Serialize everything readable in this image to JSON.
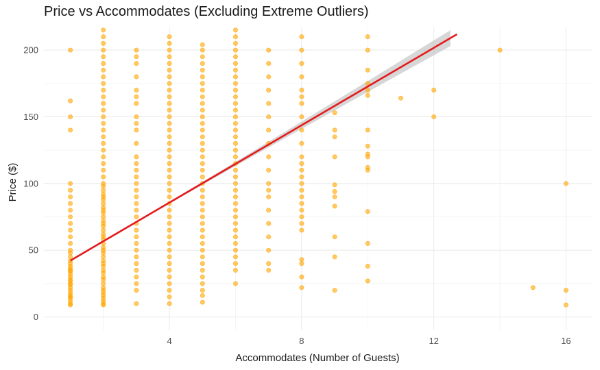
{
  "chart_data": {
    "type": "scatter",
    "title": "Price vs Accommodates (Excluding Extreme Outliers)",
    "xlabel": "Accommodates (Number of Guests)",
    "ylabel": "Price ($)",
    "xlim": [
      0.2,
      16.8
    ],
    "ylim": [
      -10,
      217
    ],
    "x_ticks": [
      4,
      8,
      12,
      16
    ],
    "y_ticks": [
      0,
      50,
      100,
      150,
      200
    ],
    "grid": true,
    "legend": "none",
    "point_color": "#FFA500",
    "trend_color": "#E41A1C",
    "band_color": "#BEBEBE",
    "trend_line": {
      "method": "lm",
      "intercept": 27.7,
      "slope": 14.5,
      "x_range": [
        1,
        12.7
      ],
      "se_band": true
    },
    "series": [
      {
        "points": [
          [
            1,
            9
          ],
          [
            1,
            10
          ],
          [
            1,
            12
          ],
          [
            1,
            14
          ],
          [
            1,
            15
          ],
          [
            1,
            16
          ],
          [
            1,
            18
          ],
          [
            1,
            20
          ],
          [
            1,
            22
          ],
          [
            1,
            24
          ],
          [
            1,
            25
          ],
          [
            1,
            27
          ],
          [
            1,
            28
          ],
          [
            1,
            30
          ],
          [
            1,
            32
          ],
          [
            1,
            34
          ],
          [
            1,
            35
          ],
          [
            1,
            36
          ],
          [
            1,
            38
          ],
          [
            1,
            40
          ],
          [
            1,
            42
          ],
          [
            1,
            45
          ],
          [
            1,
            48
          ],
          [
            1,
            50
          ],
          [
            1,
            55
          ],
          [
            1,
            60
          ],
          [
            1,
            65
          ],
          [
            1,
            70
          ],
          [
            1,
            75
          ],
          [
            1,
            80
          ],
          [
            1,
            85
          ],
          [
            1,
            90
          ],
          [
            1,
            95
          ],
          [
            1,
            100
          ],
          [
            1,
            140
          ],
          [
            1,
            150
          ],
          [
            1,
            162
          ],
          [
            1,
            200
          ],
          [
            2,
            9
          ],
          [
            2,
            10
          ],
          [
            2,
            12
          ],
          [
            2,
            14
          ],
          [
            2,
            16
          ],
          [
            2,
            18
          ],
          [
            2,
            20
          ],
          [
            2,
            22
          ],
          [
            2,
            25
          ],
          [
            2,
            28
          ],
          [
            2,
            30
          ],
          [
            2,
            33
          ],
          [
            2,
            35
          ],
          [
            2,
            38
          ],
          [
            2,
            40
          ],
          [
            2,
            42
          ],
          [
            2,
            45
          ],
          [
            2,
            48
          ],
          [
            2,
            50
          ],
          [
            2,
            52
          ],
          [
            2,
            55
          ],
          [
            2,
            58
          ],
          [
            2,
            60
          ],
          [
            2,
            62
          ],
          [
            2,
            65
          ],
          [
            2,
            68
          ],
          [
            2,
            70
          ],
          [
            2,
            72
          ],
          [
            2,
            75
          ],
          [
            2,
            78
          ],
          [
            2,
            80
          ],
          [
            2,
            82
          ],
          [
            2,
            85
          ],
          [
            2,
            88
          ],
          [
            2,
            90
          ],
          [
            2,
            92
          ],
          [
            2,
            95
          ],
          [
            2,
            98
          ],
          [
            2,
            100
          ],
          [
            2,
            105
          ],
          [
            2,
            110
          ],
          [
            2,
            115
          ],
          [
            2,
            120
          ],
          [
            2,
            125
          ],
          [
            2,
            130
          ],
          [
            2,
            135
          ],
          [
            2,
            140
          ],
          [
            2,
            145
          ],
          [
            2,
            150
          ],
          [
            2,
            155
          ],
          [
            2,
            160
          ],
          [
            2,
            165
          ],
          [
            2,
            170
          ],
          [
            2,
            175
          ],
          [
            2,
            180
          ],
          [
            2,
            185
          ],
          [
            2,
            190
          ],
          [
            2,
            195
          ],
          [
            2,
            200
          ],
          [
            2,
            205
          ],
          [
            2,
            210
          ],
          [
            2,
            215
          ],
          [
            3,
            10
          ],
          [
            3,
            20
          ],
          [
            3,
            25
          ],
          [
            3,
            30
          ],
          [
            3,
            35
          ],
          [
            3,
            40
          ],
          [
            3,
            45
          ],
          [
            3,
            50
          ],
          [
            3,
            55
          ],
          [
            3,
            60
          ],
          [
            3,
            65
          ],
          [
            3,
            70
          ],
          [
            3,
            75
          ],
          [
            3,
            80
          ],
          [
            3,
            85
          ],
          [
            3,
            90
          ],
          [
            3,
            95
          ],
          [
            3,
            100
          ],
          [
            3,
            105
          ],
          [
            3,
            110
          ],
          [
            3,
            115
          ],
          [
            3,
            120
          ],
          [
            3,
            130
          ],
          [
            3,
            140
          ],
          [
            3,
            145
          ],
          [
            3,
            150
          ],
          [
            3,
            160
          ],
          [
            3,
            165
          ],
          [
            3,
            170
          ],
          [
            3,
            180
          ],
          [
            3,
            190
          ],
          [
            3,
            195
          ],
          [
            3,
            200
          ],
          [
            4,
            10
          ],
          [
            4,
            15
          ],
          [
            4,
            20
          ],
          [
            4,
            25
          ],
          [
            4,
            30
          ],
          [
            4,
            35
          ],
          [
            4,
            40
          ],
          [
            4,
            45
          ],
          [
            4,
            50
          ],
          [
            4,
            55
          ],
          [
            4,
            60
          ],
          [
            4,
            65
          ],
          [
            4,
            70
          ],
          [
            4,
            75
          ],
          [
            4,
            80
          ],
          [
            4,
            85
          ],
          [
            4,
            90
          ],
          [
            4,
            95
          ],
          [
            4,
            100
          ],
          [
            4,
            105
          ],
          [
            4,
            110
          ],
          [
            4,
            115
          ],
          [
            4,
            120
          ],
          [
            4,
            125
          ],
          [
            4,
            130
          ],
          [
            4,
            135
          ],
          [
            4,
            140
          ],
          [
            4,
            145
          ],
          [
            4,
            150
          ],
          [
            4,
            155
          ],
          [
            4,
            160
          ],
          [
            4,
            165
          ],
          [
            4,
            170
          ],
          [
            4,
            175
          ],
          [
            4,
            180
          ],
          [
            4,
            185
          ],
          [
            4,
            190
          ],
          [
            4,
            195
          ],
          [
            4,
            200
          ],
          [
            4,
            205
          ],
          [
            4,
            210
          ],
          [
            5,
            11
          ],
          [
            5,
            16
          ],
          [
            5,
            20
          ],
          [
            5,
            25
          ],
          [
            5,
            30
          ],
          [
            5,
            35
          ],
          [
            5,
            40
          ],
          [
            5,
            45
          ],
          [
            5,
            50
          ],
          [
            5,
            55
          ],
          [
            5,
            60
          ],
          [
            5,
            65
          ],
          [
            5,
            70
          ],
          [
            5,
            75
          ],
          [
            5,
            80
          ],
          [
            5,
            85
          ],
          [
            5,
            90
          ],
          [
            5,
            95
          ],
          [
            5,
            100
          ],
          [
            5,
            105
          ],
          [
            5,
            110
          ],
          [
            5,
            115
          ],
          [
            5,
            120
          ],
          [
            5,
            125
          ],
          [
            5,
            130
          ],
          [
            5,
            135
          ],
          [
            5,
            140
          ],
          [
            5,
            145
          ],
          [
            5,
            150
          ],
          [
            5,
            155
          ],
          [
            5,
            160
          ],
          [
            5,
            165
          ],
          [
            5,
            170
          ],
          [
            5,
            175
          ],
          [
            5,
            180
          ],
          [
            5,
            185
          ],
          [
            5,
            190
          ],
          [
            5,
            195
          ],
          [
            5,
            200
          ],
          [
            5,
            204
          ],
          [
            6,
            25
          ],
          [
            6,
            35
          ],
          [
            6,
            40
          ],
          [
            6,
            45
          ],
          [
            6,
            50
          ],
          [
            6,
            55
          ],
          [
            6,
            60
          ],
          [
            6,
            65
          ],
          [
            6,
            70
          ],
          [
            6,
            75
          ],
          [
            6,
            80
          ],
          [
            6,
            85
          ],
          [
            6,
            90
          ],
          [
            6,
            95
          ],
          [
            6,
            100
          ],
          [
            6,
            105
          ],
          [
            6,
            110
          ],
          [
            6,
            115
          ],
          [
            6,
            120
          ],
          [
            6,
            125
          ],
          [
            6,
            130
          ],
          [
            6,
            135
          ],
          [
            6,
            140
          ],
          [
            6,
            145
          ],
          [
            6,
            150
          ],
          [
            6,
            155
          ],
          [
            6,
            160
          ],
          [
            6,
            165
          ],
          [
            6,
            170
          ],
          [
            6,
            175
          ],
          [
            6,
            180
          ],
          [
            6,
            185
          ],
          [
            6,
            190
          ],
          [
            6,
            195
          ],
          [
            6,
            200
          ],
          [
            6,
            205
          ],
          [
            6,
            210
          ],
          [
            6,
            215
          ],
          [
            7,
            35
          ],
          [
            7,
            40
          ],
          [
            7,
            50
          ],
          [
            7,
            60
          ],
          [
            7,
            70
          ],
          [
            7,
            80
          ],
          [
            7,
            90
          ],
          [
            7,
            95
          ],
          [
            7,
            100
          ],
          [
            7,
            110
          ],
          [
            7,
            120
          ],
          [
            7,
            130
          ],
          [
            7,
            140
          ],
          [
            7,
            150
          ],
          [
            7,
            160
          ],
          [
            7,
            170
          ],
          [
            7,
            180
          ],
          [
            7,
            190
          ],
          [
            7,
            200
          ],
          [
            8,
            22
          ],
          [
            8,
            30
          ],
          [
            8,
            40
          ],
          [
            8,
            43
          ],
          [
            8,
            65
          ],
          [
            8,
            70
          ],
          [
            8,
            75
          ],
          [
            8,
            80
          ],
          [
            8,
            85
          ],
          [
            8,
            90
          ],
          [
            8,
            95
          ],
          [
            8,
            100
          ],
          [
            8,
            105
          ],
          [
            8,
            110
          ],
          [
            8,
            115
          ],
          [
            8,
            120
          ],
          [
            8,
            130
          ],
          [
            8,
            140
          ],
          [
            8,
            150
          ],
          [
            8,
            160
          ],
          [
            8,
            165
          ],
          [
            8,
            170
          ],
          [
            8,
            180
          ],
          [
            8,
            190
          ],
          [
            8,
            200
          ],
          [
            8,
            210
          ],
          [
            9,
            20
          ],
          [
            9,
            45
          ],
          [
            9,
            60
          ],
          [
            9,
            83
          ],
          [
            9,
            90
          ],
          [
            9,
            94
          ],
          [
            9,
            99
          ],
          [
            9,
            120
          ],
          [
            9,
            135
          ],
          [
            9,
            140
          ],
          [
            9,
            153
          ],
          [
            10,
            27
          ],
          [
            10,
            38
          ],
          [
            10,
            55
          ],
          [
            10,
            79
          ],
          [
            10,
            110
          ],
          [
            10,
            112
          ],
          [
            10,
            120
          ],
          [
            10,
            122
          ],
          [
            10,
            128
          ],
          [
            10,
            140
          ],
          [
            10,
            166
          ],
          [
            10,
            170
          ],
          [
            10,
            175
          ],
          [
            10,
            185
          ],
          [
            10,
            200
          ],
          [
            10,
            210
          ],
          [
            11,
            164
          ],
          [
            12,
            150
          ],
          [
            12,
            170
          ],
          [
            14,
            200
          ],
          [
            15,
            22
          ],
          [
            16,
            9
          ],
          [
            16,
            20
          ],
          [
            16,
            100
          ]
        ]
      }
    ]
  }
}
